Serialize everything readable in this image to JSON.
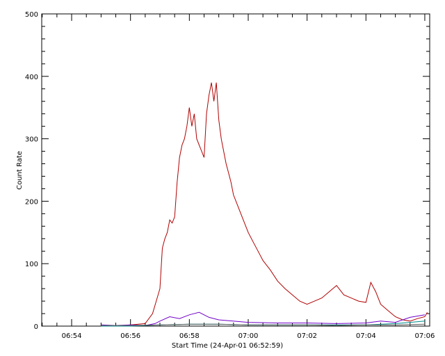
{
  "chart_data": {
    "type": "line",
    "title": "",
    "xlabel": "Start Time (24-Apr-01 06:52:59)",
    "ylabel": "Count Rate",
    "x_unit": "time (HH:MM)",
    "xlim": [
      "06:52:59",
      "07:06:10"
    ],
    "ylim": [
      0,
      500
    ],
    "x_ticks": [
      "06:54",
      "06:56",
      "06:58",
      "07:00",
      "07:02",
      "07:04",
      "07:06"
    ],
    "y_ticks": [
      0,
      100,
      200,
      300,
      400,
      500
    ],
    "grid": false,
    "legend": "none",
    "series": [
      {
        "color": "#b00000",
        "x": [
          "06:55:00",
          "06:55:30",
          "06:56:00",
          "06:56:30",
          "06:56:45",
          "06:57:00",
          "06:57:05",
          "06:57:10",
          "06:57:15",
          "06:57:20",
          "06:57:25",
          "06:57:30",
          "06:57:35",
          "06:57:40",
          "06:57:45",
          "06:57:50",
          "06:57:55",
          "06:58:00",
          "06:58:05",
          "06:58:10",
          "06:58:15",
          "06:58:20",
          "06:58:25",
          "06:58:30",
          "06:58:35",
          "06:58:40",
          "06:58:45",
          "06:58:50",
          "06:58:55",
          "06:59:00",
          "06:59:05",
          "06:59:10",
          "06:59:15",
          "06:59:20",
          "06:59:25",
          "06:59:30",
          "06:59:40",
          "06:59:50",
          "07:00:00",
          "07:00:10",
          "07:00:20",
          "07:00:30",
          "07:00:45",
          "07:01:00",
          "07:01:15",
          "07:01:30",
          "07:01:45",
          "07:02:00",
          "07:02:15",
          "07:02:30",
          "07:02:45",
          "07:03:00",
          "07:03:15",
          "07:03:30",
          "07:03:45",
          "07:04:00",
          "07:04:10",
          "07:04:20",
          "07:04:30",
          "07:04:45",
          "07:05:00",
          "07:05:15",
          "07:05:30",
          "07:05:45",
          "07:06:00",
          "07:06:05"
        ],
        "y": [
          0,
          0,
          2,
          4,
          20,
          60,
          125,
          140,
          150,
          170,
          165,
          175,
          230,
          270,
          290,
          300,
          320,
          350,
          320,
          340,
          300,
          290,
          280,
          270,
          340,
          370,
          390,
          360,
          390,
          330,
          300,
          280,
          260,
          245,
          230,
          210,
          190,
          170,
          150,
          135,
          120,
          105,
          90,
          72,
          60,
          50,
          40,
          35,
          40,
          45,
          55,
          65,
          50,
          45,
          40,
          38,
          70,
          55,
          35,
          25,
          15,
          10,
          8,
          12,
          15,
          22
        ]
      },
      {
        "color": "#7000c8",
        "x": [
          "06:55:00",
          "06:55:30",
          "06:56:00",
          "06:56:30",
          "06:56:50",
          "06:57:00",
          "06:57:20",
          "06:57:40",
          "06:58:00",
          "06:58:20",
          "06:58:40",
          "06:59:00",
          "07:00:00",
          "07:01:00",
          "07:02:00",
          "07:03:00",
          "07:04:00",
          "07:04:30",
          "07:05:00",
          "07:05:30",
          "07:06:00"
        ],
        "y": [
          2,
          1,
          2,
          1,
          4,
          8,
          15,
          12,
          18,
          22,
          14,
          10,
          6,
          5,
          5,
          4,
          5,
          8,
          6,
          14,
          18
        ]
      },
      {
        "color": "#008c8c",
        "x": [
          "06:55:00",
          "06:56:00",
          "06:57:00",
          "06:58:00",
          "06:59:00",
          "07:00:00",
          "07:01:00",
          "07:02:00",
          "07:03:00",
          "07:04:00",
          "07:05:00",
          "07:05:30",
          "07:06:00"
        ],
        "y": [
          0,
          0,
          2,
          3,
          3,
          2,
          2,
          2,
          2,
          2,
          4,
          6,
          8
        ]
      },
      {
        "color": "#606060",
        "x": [
          "06:55:00",
          "06:56:00",
          "06:57:00",
          "06:58:00",
          "06:59:00",
          "07:00:00",
          "07:01:00",
          "07:02:00",
          "07:03:00",
          "07:04:00",
          "07:05:00",
          "07:06:00"
        ],
        "y": [
          1,
          1,
          2,
          3,
          3,
          2,
          2,
          2,
          1,
          2,
          2,
          3
        ]
      }
    ]
  }
}
